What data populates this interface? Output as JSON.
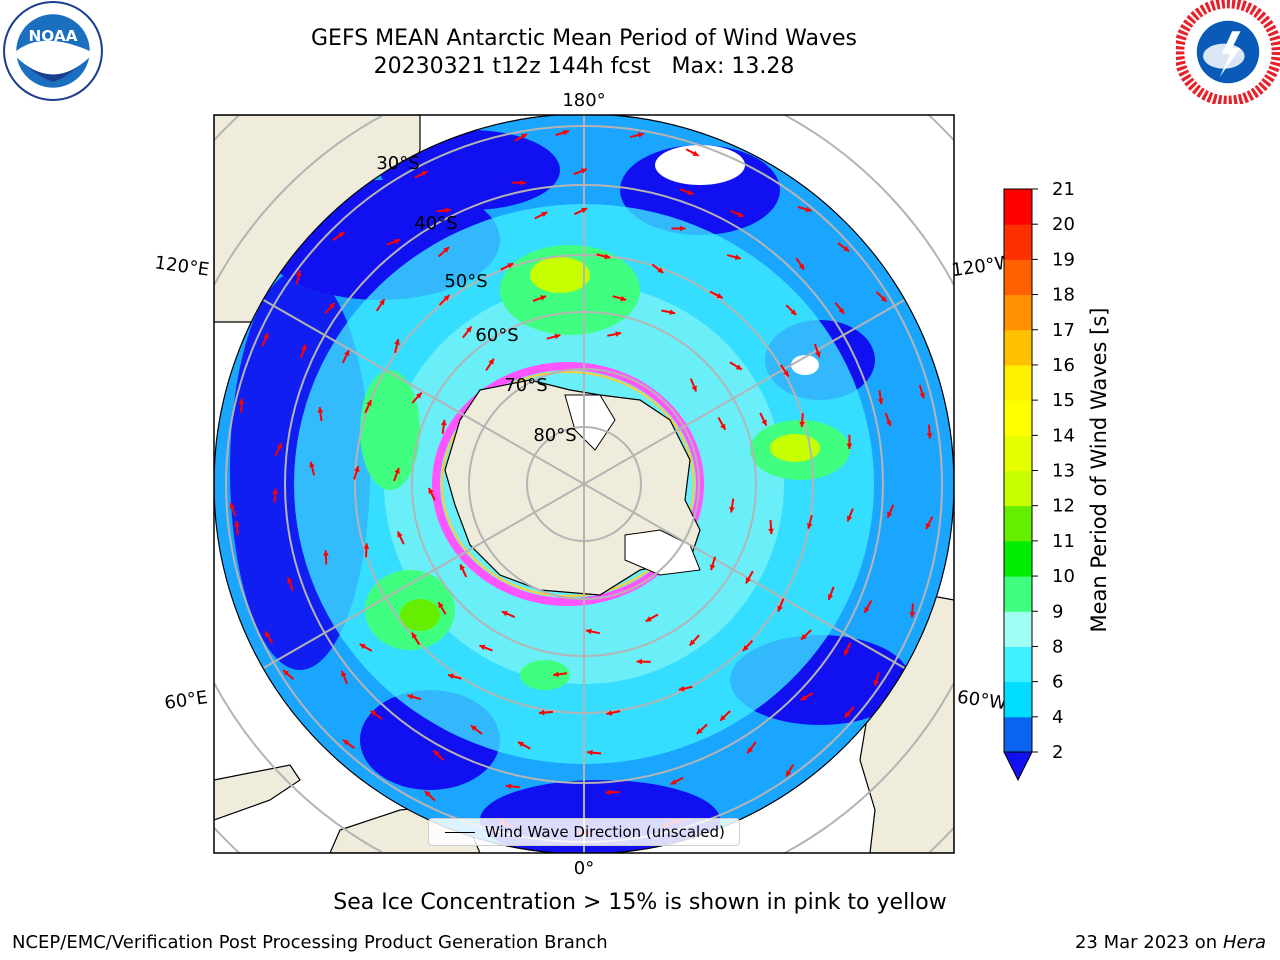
{
  "title": {
    "line1": "GEFS MEAN Antarctic Mean Period of Wind Waves",
    "line2": "20230321 t12z 144h fcst   Max: 13.28"
  },
  "lon_labels": [
    "180°",
    "120°E",
    "120°W",
    "60°E",
    "60°W",
    "0°"
  ],
  "lat_labels": [
    "30°S",
    "40°S",
    "50°S",
    "60°S",
    "70°S",
    "80°S"
  ],
  "legend": {
    "label": "Wind Wave Direction (unscaled)"
  },
  "colorbar": {
    "label": "Mean Period of Wind Waves [s]",
    "ticks": [
      "2",
      "4",
      "6",
      "8",
      "9",
      "10",
      "11",
      "12",
      "13",
      "14",
      "15",
      "16",
      "17",
      "18",
      "19",
      "20",
      "21"
    ],
    "colors": [
      "#0a64f0",
      "#00ddff",
      "#3ff0ff",
      "#a0fff4",
      "#40ff80",
      "#00ee00",
      "#66ee00",
      "#c8ff00",
      "#e6ff00",
      "#ffff00",
      "#fff000",
      "#ffc000",
      "#ff9000",
      "#ff6000",
      "#ff3000",
      "#ff0000"
    ],
    "under_color": "#1010f0"
  },
  "notes": {
    "sea_ice": "Sea Ice Concentration > 15% is shown in pink to yellow",
    "credit_left": "NCEP/EMC/Verification Post Processing Product Generation Branch",
    "credit_date": "23 Mar 2023 on",
    "credit_machine": "Hera"
  },
  "colors": {
    "land": "#efecdc",
    "arrow": "#ff0000",
    "grid": "#b4b4b4",
    "sea_ice": "#ff55ff"
  },
  "logos": {
    "left": "noaa-logo",
    "right": "nws-logo"
  }
}
